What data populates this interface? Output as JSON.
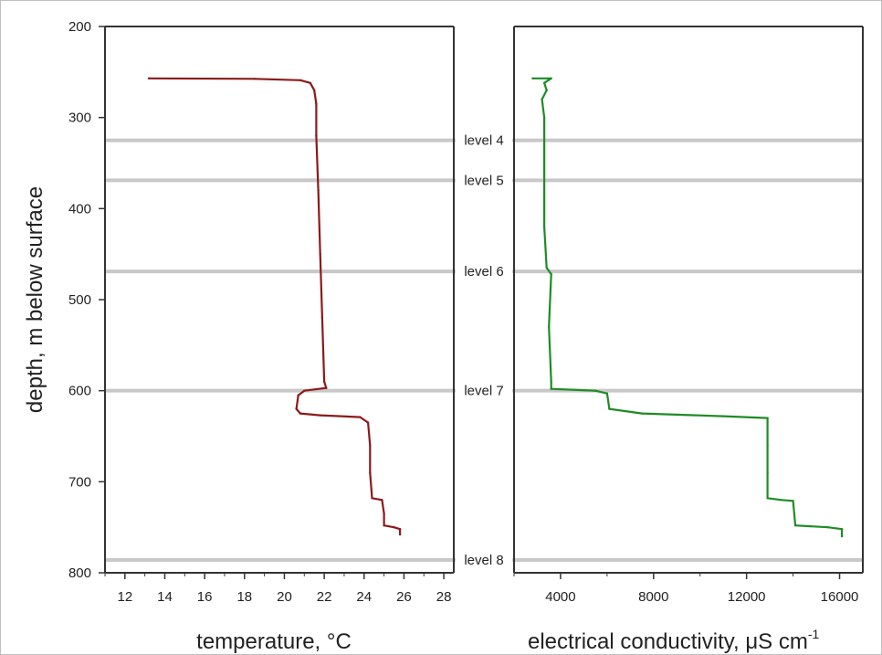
{
  "chart_data": [
    {
      "type": "line",
      "name_hint": "temperature-panel",
      "xlabel": "temperature, °C",
      "ylabel": "depth, m below surface",
      "xlim": [
        11,
        28.5
      ],
      "ylim": [
        800,
        200
      ],
      "x_ticks": [
        12,
        14,
        16,
        18,
        20,
        22,
        24,
        26,
        28
      ],
      "y_ticks": [
        200,
        300,
        400,
        500,
        600,
        700,
        800
      ],
      "series": [
        {
          "color": "#8b1a1a",
          "points": [
            [
              13.2,
              257
            ],
            [
              18.5,
              257.5
            ],
            [
              20.8,
              259
            ],
            [
              21.3,
              262
            ],
            [
              21.5,
              270
            ],
            [
              21.6,
              285
            ],
            [
              21.6,
              320
            ],
            [
              21.7,
              380
            ],
            [
              21.8,
              450
            ],
            [
              21.9,
              520
            ],
            [
              22.0,
              590
            ],
            [
              22.1,
              597
            ],
            [
              21.0,
              600
            ],
            [
              20.7,
              605
            ],
            [
              20.6,
              620
            ],
            [
              20.8,
              625
            ],
            [
              21.8,
              627
            ],
            [
              23.8,
              629
            ],
            [
              24.2,
              635
            ],
            [
              24.3,
              660
            ],
            [
              24.3,
              690
            ],
            [
              24.4,
              718
            ],
            [
              24.9,
              720
            ],
            [
              25.0,
              735
            ],
            [
              25.0,
              748
            ],
            [
              25.5,
              750
            ],
            [
              25.8,
              752
            ],
            [
              25.8,
              758
            ]
          ]
        }
      ]
    },
    {
      "type": "line",
      "name_hint": "conductivity-panel",
      "xlabel": "electrical conductivity, μS cm",
      "xlabel_sup": "-1",
      "xlim": [
        2000,
        17000
      ],
      "ylim": [
        800,
        200
      ],
      "x_ticks": [
        4000,
        8000,
        12000,
        16000
      ],
      "y_ticks": [
        200,
        300,
        400,
        500,
        600,
        700,
        800
      ],
      "series": [
        {
          "color": "#1f8b24",
          "points": [
            [
              2800,
              257
            ],
            [
              3600,
              257
            ],
            [
              3300,
              262
            ],
            [
              3400,
              270
            ],
            [
              3200,
              280
            ],
            [
              3300,
              300
            ],
            [
              3300,
              350
            ],
            [
              3300,
              420
            ],
            [
              3400,
              465
            ],
            [
              3600,
              472
            ],
            [
              3500,
              530
            ],
            [
              3600,
              590
            ],
            [
              3600,
              598
            ],
            [
              5500,
              600
            ],
            [
              6000,
              603
            ],
            [
              6100,
              620
            ],
            [
              7500,
              625
            ],
            [
              11000,
              628
            ],
            [
              12900,
              630
            ],
            [
              12900,
              660
            ],
            [
              12900,
              690
            ],
            [
              12900,
              718
            ],
            [
              13500,
              720
            ],
            [
              14000,
              721
            ],
            [
              14100,
              748
            ],
            [
              15500,
              750
            ],
            [
              16100,
              752
            ],
            [
              16100,
              760
            ]
          ]
        }
      ]
    }
  ],
  "levels": [
    {
      "label": "level 4",
      "depth": 325
    },
    {
      "label": "level 5",
      "depth": 369
    },
    {
      "label": "level 6",
      "depth": 469
    },
    {
      "label": "level 7",
      "depth": 600
    },
    {
      "label": "level 8",
      "depth": 786
    }
  ],
  "colors": {
    "temperature_line": "#8b1a1a",
    "conductivity_line": "#1f8b24",
    "level_line": "#c8c8c8",
    "frame": "#333333"
  }
}
